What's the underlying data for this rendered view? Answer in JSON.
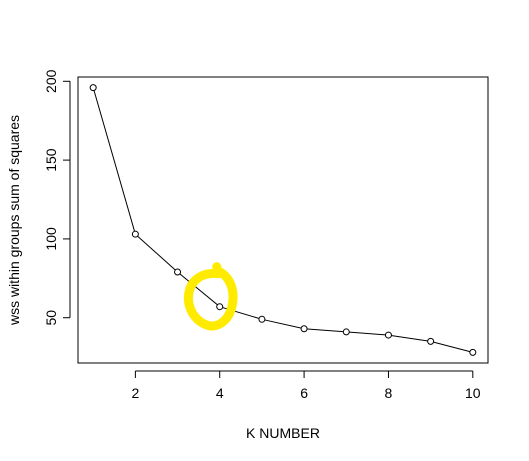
{
  "chart_data": {
    "type": "line",
    "xlabel": "K NUMBER",
    "ylabel": "wss within groups sum of squares",
    "x": [
      1,
      2,
      3,
      4,
      5,
      6,
      7,
      8,
      9,
      10
    ],
    "y": [
      196,
      103,
      79,
      57,
      49,
      43,
      41,
      39,
      35,
      28
    ],
    "x_ticks": [
      "2",
      "4",
      "6",
      "8",
      "10"
    ],
    "y_ticks": [
      "50",
      "100",
      "150",
      "200"
    ],
    "xlim": [
      0.64,
      10.36
    ],
    "ylim": [
      21.28,
      202.72
    ],
    "markers": "open-circle",
    "grid": false,
    "annotation": {
      "shape": "hand-drawn circle",
      "color": "#ffeb00",
      "marks_x": 4
    }
  }
}
